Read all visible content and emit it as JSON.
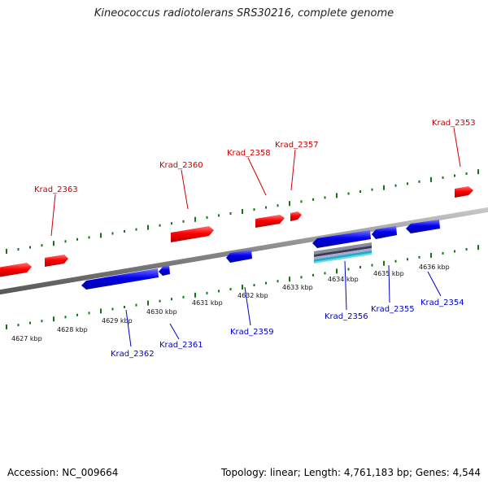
{
  "title": "Kineococcus radiotolerans SRS30216, complete genome",
  "footer": {
    "accession": "Accession: NC_009664",
    "summary": "Topology: linear; Length: 4,761,183 bp; Genes: 4,544"
  },
  "colors": {
    "forward_gene": "#ff0000",
    "reverse_gene": "#0000ee",
    "backbone": "#888888",
    "ticks": "#117711",
    "forward_label": "#cc0000",
    "reverse_label": "#0000cc"
  },
  "position_labels": [
    "4627 kbp",
    "4628 kbp",
    "4629 kbp",
    "4630 kbp",
    "4631 kbp",
    "4632 kbp",
    "4633 kbp",
    "4634 kbp",
    "4635 kbp",
    "4636 kbp"
  ],
  "forward_labels": [
    "Krad_2363",
    "Krad_2360",
    "Krad_2358",
    "Krad_2357",
    "Krad_2353"
  ],
  "reverse_labels": [
    "Krad_2362",
    "Krad_2361",
    "Krad_2359",
    "Krad_2356",
    "Krad_2355",
    "Krad_2354"
  ]
}
